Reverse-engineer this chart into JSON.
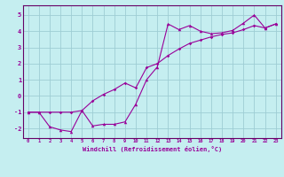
{
  "xlabel": "Windchill (Refroidissement éolien,°C)",
  "xlim": [
    -0.5,
    23.5
  ],
  "ylim": [
    -2.6,
    5.6
  ],
  "yticks": [
    -2,
    -1,
    0,
    1,
    2,
    3,
    4,
    5
  ],
  "xticks": [
    0,
    1,
    2,
    3,
    4,
    5,
    6,
    7,
    8,
    9,
    10,
    11,
    12,
    13,
    14,
    15,
    16,
    17,
    18,
    19,
    20,
    21,
    22,
    23
  ],
  "bg_color": "#c5eef0",
  "grid_color": "#9ecdd4",
  "line_color": "#990099",
  "spine_color": "#660066",
  "line1_x": [
    0,
    1,
    2,
    3,
    4,
    5,
    6,
    7,
    8,
    9,
    10,
    11,
    12,
    13,
    14,
    15,
    16,
    17,
    18,
    19,
    20,
    21,
    22,
    23
  ],
  "line1_y": [
    -1.0,
    -1.0,
    -1.9,
    -2.1,
    -2.2,
    -0.9,
    -1.85,
    -1.75,
    -1.75,
    -1.6,
    -0.5,
    1.0,
    1.8,
    4.45,
    4.1,
    4.35,
    4.0,
    3.85,
    3.9,
    4.05,
    4.5,
    5.0,
    4.2,
    4.45
  ],
  "line2_x": [
    0,
    1,
    2,
    3,
    4,
    5,
    6,
    7,
    8,
    9,
    10,
    11,
    12,
    13,
    14,
    15,
    16,
    17,
    18,
    19,
    20,
    21,
    22,
    23
  ],
  "line2_y": [
    -1.0,
    -1.0,
    -1.0,
    -1.0,
    -1.0,
    -0.9,
    -0.3,
    0.1,
    0.4,
    0.8,
    0.5,
    1.75,
    2.0,
    2.5,
    2.9,
    3.25,
    3.45,
    3.65,
    3.8,
    3.9,
    4.1,
    4.35,
    4.2,
    4.45
  ]
}
